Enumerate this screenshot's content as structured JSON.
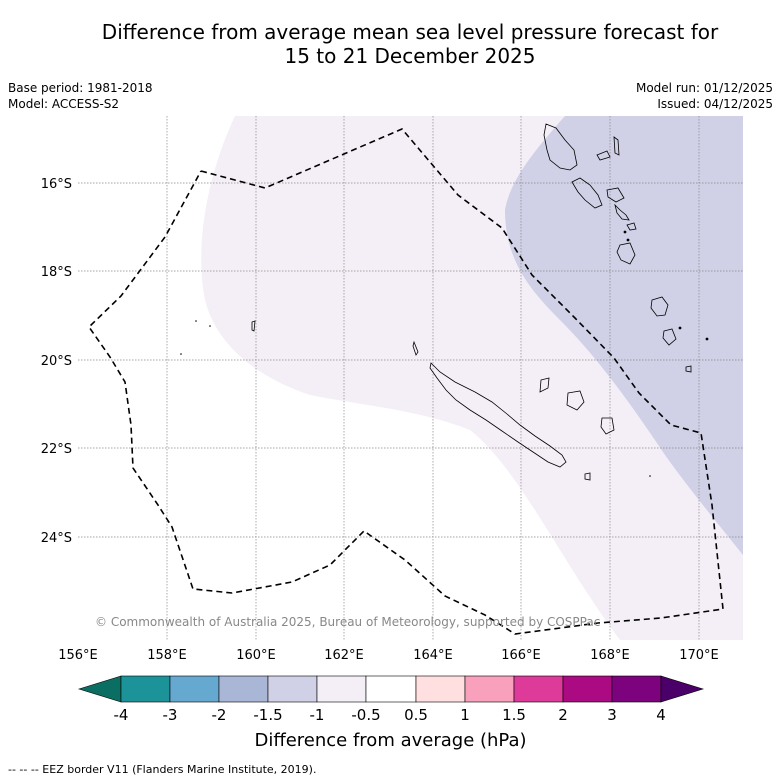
{
  "title_line1": "Difference from average mean sea level pressure forecast for",
  "title_line2": "15 to 21 December 2025",
  "base_period": "Base period: 1981-2018",
  "model": "Model: ACCESS-S2",
  "model_run": "Model run: 01/12/2025",
  "issued": "Issued: 04/12/2025",
  "lat_labels": [
    "16°S",
    "18°S",
    "20°S",
    "22°S",
    "24°S"
  ],
  "lon_labels": [
    "156°E",
    "158°E",
    "160°E",
    "162°E",
    "164°E",
    "166°E",
    "168°E",
    "170°E"
  ],
  "copyright": "© Commonwealth of Australia 2025, Bureau of Meteorology, supported by COSPPac",
  "colorbar": {
    "title": "Difference from average (hPa)",
    "ticks": [
      "-4",
      "-3",
      "-2",
      "-1.5",
      "-1",
      "-0.5",
      "0.5",
      "1",
      "1.5",
      "2",
      "3",
      "4"
    ],
    "colors": [
      "#0b6e63",
      "#1c9399",
      "#66a9d0",
      "#aab6d6",
      "#d0d0e6",
      "#f4eef6",
      "#ffffff",
      "#ffdfdf",
      "#f9a0bd",
      "#dd3a9a",
      "#ac0a82",
      "#7d027e",
      "#4a0068"
    ]
  },
  "footer": "--  --  -- EEZ border V11 (Flanders Marine Institute, 2019)."
}
